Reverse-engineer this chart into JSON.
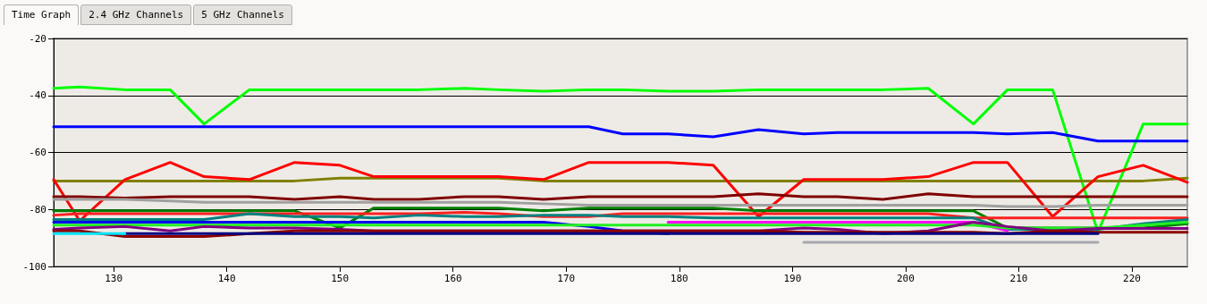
{
  "chart_data": {
    "type": "line",
    "annotations": [
      "Time Graph",
      "2.4 GHz Channels",
      "5 GHz Channels"
    ],
    "x": [
      124.7,
      127,
      131,
      135,
      138,
      142,
      146,
      150,
      153,
      157,
      161,
      164,
      168,
      172,
      175,
      179,
      183,
      187,
      191,
      194,
      198,
      202,
      206,
      209,
      213,
      217,
      221,
      224.9
    ],
    "xlim": [
      124.7,
      224.9
    ],
    "xticks": [
      130,
      140,
      150,
      160,
      170,
      180,
      190,
      200,
      210,
      220
    ],
    "ylim": [
      -100,
      -20
    ],
    "yticks": [
      -20,
      -40,
      -60,
      -80,
      -100
    ],
    "grid": "y",
    "line_style": "solid",
    "series": [
      {
        "color": "#00ff00",
        "values": [
          -37.5,
          -37,
          -38,
          -38,
          -50,
          -38,
          -38,
          -38,
          -38,
          -38,
          -37.5,
          -38,
          -38.5,
          -38,
          -38,
          -38.5,
          -38.5,
          -38,
          -38,
          -38,
          -38,
          -37.5,
          -50,
          -38,
          -38,
          -88,
          -50,
          -50
        ]
      },
      {
        "color": "#0000ff",
        "values": [
          -51,
          -51,
          -51,
          -51,
          -51,
          -51,
          -51,
          -51,
          -51,
          -51,
          -51,
          -51,
          -51,
          -51,
          -53.5,
          -53.5,
          -54.5,
          -52,
          -53.5,
          -53,
          -53,
          -53,
          -53,
          -53.5,
          -53,
          -56,
          -56,
          -56
        ]
      },
      {
        "color": "#808000",
        "values": [
          -70,
          -70,
          -70,
          -70,
          -70,
          -70,
          -70,
          -69,
          -69,
          -69,
          -69,
          -69,
          -70,
          -70,
          -70,
          -70,
          -70,
          -70,
          -70,
          -70,
          -70,
          -70,
          -70,
          -70,
          -70,
          -70,
          -70,
          -69
        ]
      },
      {
        "color": "#ff0000",
        "values": [
          -69.5,
          -84,
          -69.5,
          -63.5,
          -68.5,
          -69.5,
          -63.5,
          -64.5,
          -68.5,
          -68.5,
          -68.5,
          -68.5,
          -69.5,
          -63.5,
          -63.5,
          -63.5,
          -64.5,
          -82.5,
          -69.5,
          -69.5,
          -69.5,
          -68.5,
          -63.5,
          -63.5,
          -82.5,
          -68.5,
          -64.5,
          -70.5
        ]
      },
      {
        "color": "#800000",
        "values": [
          -75.5,
          -75.5,
          -76,
          -75.5,
          -75.5,
          -75.5,
          -76.5,
          -75.5,
          -76.5,
          -76.5,
          -75.5,
          -75.5,
          -76.5,
          -75.5,
          -75.5,
          -75.5,
          -75.5,
          -74.5,
          -75.5,
          -75.5,
          -76.5,
          -74.5,
          -75.5,
          -75.5,
          -75.5,
          -75.5,
          -75.5,
          -75.5
        ]
      },
      {
        "color": "#a0a0a0",
        "values": [
          -76.5,
          -76.5,
          -76.5,
          -77,
          -77.5,
          -77.5,
          -77.5,
          -77.5,
          -77.5,
          -77.5,
          -77.5,
          -77.5,
          -78,
          -78.5,
          -78.5,
          -78.5,
          -78.5,
          -78.5,
          -78.5,
          -78.5,
          -78.5,
          -78.5,
          -78.5,
          -79,
          -79,
          -78.5,
          -78.5,
          -78.5
        ]
      },
      {
        "color": "#008000",
        "values": [
          -80.5,
          -80.5,
          -80.5,
          -80.5,
          -80.5,
          -80.5,
          -80.5,
          -86.5,
          -79.5,
          -79.5,
          -79.5,
          -79.5,
          -80.5,
          -79.5,
          -79.5,
          -79.5,
          -79.5,
          -80.5,
          -80.5,
          -80.5,
          -80.5,
          -80.5,
          -80.5,
          -86.5,
          -86.5,
          -86.5,
          -86.5,
          -85
        ]
      },
      {
        "color": "#ff2020",
        "values": [
          -82,
          -81.5,
          -81.5,
          -81.5,
          -81.5,
          -81.5,
          -81.5,
          -81.5,
          -81.5,
          -81.5,
          -81,
          -81.5,
          -82.5,
          -82.5,
          -81.5,
          -81.5,
          -81.5,
          -81.5,
          -81.5,
          -81.5,
          -81.5,
          -81.5,
          -83,
          -83,
          -83,
          -83,
          -83,
          -83
        ]
      },
      {
        "color": "#008080",
        "values": [
          -83.5,
          -83.5,
          -83.5,
          -83.5,
          -83.5,
          -81.5,
          -82.5,
          -82.5,
          -83,
          -82,
          -82.5,
          -82.5,
          -82,
          -82,
          -82.5,
          -82.5,
          -83,
          -83,
          -83,
          -83,
          -83,
          -83,
          -83,
          -87,
          -87,
          -87,
          -85,
          -83.5
        ]
      },
      {
        "color": "#0000ee",
        "values": [
          -84.5,
          -84.5,
          -84.5,
          -84.5,
          -84.5,
          -84.5,
          -84.5,
          -84.5,
          -84.5,
          -84.5,
          -84.5,
          -84.5,
          -84.5,
          -86,
          -87.5,
          -88.5,
          null,
          null,
          null,
          null,
          null,
          null,
          null,
          null,
          null,
          null,
          null,
          null
        ]
      },
      {
        "color": "#ff00ff",
        "values": [
          null,
          null,
          null,
          null,
          null,
          null,
          null,
          null,
          null,
          null,
          null,
          null,
          null,
          null,
          null,
          -84.5,
          -84.5,
          -84.5,
          -84.5,
          -84.5,
          -84.5,
          -84.5,
          -84.5,
          -87.5,
          null,
          null,
          null,
          null
        ]
      },
      {
        "color": "#22ee22",
        "values": [
          -85.5,
          -85.5,
          -85.5,
          -85.5,
          -85.5,
          -85.5,
          -85.5,
          -85.5,
          -85.5,
          -85.5,
          -85.5,
          -85.5,
          -85.5,
          -85.5,
          -85.5,
          -85.5,
          -85.5,
          -85.5,
          -85.5,
          -85.5,
          -85.5,
          -85.5,
          -85.5,
          -86.5,
          -86.5,
          -86.5,
          -85.5,
          -84.5
        ]
      },
      {
        "color": "#800080",
        "values": [
          -87,
          -86.5,
          -86,
          -87.5,
          -86,
          -86.5,
          -86.5,
          -87,
          -87.5,
          -87.5,
          -87.5,
          -87.5,
          -87.5,
          -87.5,
          -87.5,
          -87.5,
          -87.5,
          -87.5,
          -86.5,
          -87,
          -88.5,
          -87.5,
          -84.5,
          -86,
          -87.5,
          -86.7,
          -86.7,
          -86.7
        ]
      },
      {
        "color": "#8b0000",
        "values": [
          -87.5,
          -87.5,
          -89.5,
          -89.5,
          -89.5,
          -88.5,
          -87.5,
          -87.5,
          -87.5,
          -87.5,
          -87.5,
          -87.5,
          -87.5,
          -87.5,
          -87.5,
          -87.5,
          -87.5,
          -87.5,
          -88,
          -88,
          -88,
          -88,
          -88,
          -88.5,
          -87.5,
          -88,
          -88,
          -88
        ]
      },
      {
        "color": "#000080",
        "values": [
          null,
          null,
          -88.5,
          -88.5,
          -88.5,
          -88.5,
          -88.5,
          -88.5,
          -88.5,
          -88.5,
          -88.5,
          -88.5,
          -88.5,
          -88.5,
          -88.5,
          -88.5,
          -88.5,
          -88.5,
          -88.5,
          -88.5,
          -88.5,
          -88.5,
          -88.5,
          -88.5,
          -88.5,
          -88.5,
          null,
          null
        ]
      },
      {
        "color": "#00e5ff",
        "values": [
          -88.5,
          -88.5,
          -88.5,
          null,
          null,
          null,
          null,
          null,
          null,
          null,
          null,
          null,
          null,
          null,
          null,
          null,
          null,
          null,
          null,
          null,
          null,
          null,
          null,
          null,
          null,
          null,
          null,
          null
        ]
      },
      {
        "color": "#a8a8b0",
        "values": [
          null,
          null,
          null,
          null,
          null,
          null,
          null,
          null,
          null,
          null,
          null,
          null,
          null,
          null,
          null,
          null,
          null,
          null,
          -91.5,
          -91.5,
          -91.5,
          -91.5,
          -91.5,
          -91.5,
          -91.5,
          -91.5,
          null,
          null
        ]
      }
    ]
  }
}
